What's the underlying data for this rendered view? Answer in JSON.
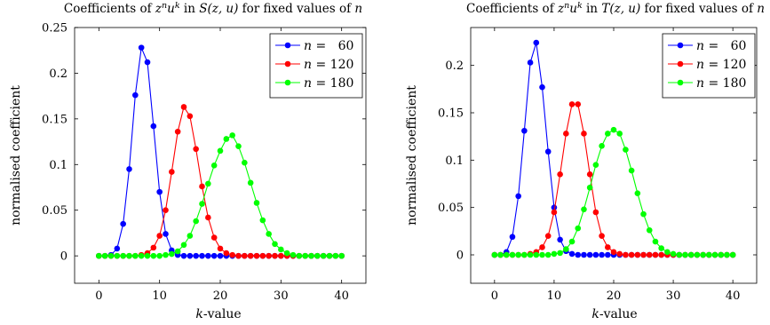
{
  "chart_data": [
    {
      "type": "line",
      "title_parts": [
        "Coefficients of ",
        "z",
        "n",
        "u",
        "k",
        " in ",
        "S",
        "(z, u)",
        " for fixed values of ",
        "n"
      ],
      "xlabel_parts": [
        "k",
        "-value"
      ],
      "ylabel": "normalised coefficient",
      "xlim": [
        -4,
        44
      ],
      "ylim": [
        -0.03,
        0.25
      ],
      "xticks": [
        0,
        10,
        20,
        30,
        40
      ],
      "yticks": [
        0,
        0.05,
        0.1,
        0.15,
        0.2,
        0.25
      ],
      "ytick_labels": [
        "0",
        "0.05",
        "0.1",
        "0.15",
        "0.2",
        "0.25"
      ],
      "legend_position": "top-right",
      "series": [
        {
          "name_parts": [
            "n",
            " =   60"
          ],
          "color": "#0000ff",
          "x": [
            0,
            1,
            2,
            3,
            4,
            5,
            6,
            7,
            8,
            9,
            10,
            11,
            12,
            13,
            14,
            15,
            16,
            17,
            18,
            19,
            20,
            21,
            22,
            23,
            24,
            25,
            26,
            27,
            28,
            29,
            30,
            31,
            32,
            33,
            34,
            35,
            36,
            37,
            38,
            39,
            40
          ],
          "y": [
            0,
            0,
            0.001,
            0.008,
            0.035,
            0.095,
            0.176,
            0.228,
            0.212,
            0.142,
            0.07,
            0.024,
            0.006,
            0.001,
            0,
            0,
            0,
            0,
            0,
            0,
            0,
            0,
            0,
            0,
            0,
            0,
            0,
            0,
            0,
            0,
            0,
            0,
            0,
            0,
            0,
            0,
            0,
            0,
            0,
            0,
            0
          ]
        },
        {
          "name_parts": [
            "n",
            " = 120"
          ],
          "color": "#ff0000",
          "x": [
            0,
            1,
            2,
            3,
            4,
            5,
            6,
            7,
            8,
            9,
            10,
            11,
            12,
            13,
            14,
            15,
            16,
            17,
            18,
            19,
            20,
            21,
            22,
            23,
            24,
            25,
            26,
            27,
            28,
            29,
            30,
            31,
            32,
            33,
            34,
            35,
            36,
            37,
            38,
            39,
            40
          ],
          "y": [
            0,
            0,
            0,
            0,
            0,
            0,
            0,
            0.001,
            0.003,
            0.009,
            0.022,
            0.05,
            0.092,
            0.136,
            0.163,
            0.153,
            0.117,
            0.076,
            0.042,
            0.02,
            0.008,
            0.003,
            0.001,
            0,
            0,
            0,
            0,
            0,
            0,
            0,
            0,
            0,
            0,
            0,
            0,
            0,
            0,
            0,
            0,
            0,
            0
          ]
        },
        {
          "name_parts": [
            "n",
            " = 180"
          ],
          "color": "#00ff00",
          "x": [
            0,
            1,
            2,
            3,
            4,
            5,
            6,
            7,
            8,
            9,
            10,
            11,
            12,
            13,
            14,
            15,
            16,
            17,
            18,
            19,
            20,
            21,
            22,
            23,
            24,
            25,
            26,
            27,
            28,
            29,
            30,
            31,
            32,
            33,
            34,
            35,
            36,
            37,
            38,
            39,
            40
          ],
          "y": [
            0,
            0,
            0,
            0,
            0,
            0,
            0,
            0,
            0,
            0,
            0,
            0.001,
            0.002,
            0.005,
            0.012,
            0.022,
            0.038,
            0.057,
            0.079,
            0.099,
            0.115,
            0.128,
            0.132,
            0.12,
            0.102,
            0.08,
            0.058,
            0.039,
            0.024,
            0.013,
            0.007,
            0.003,
            0.001,
            0,
            0,
            0,
            0,
            0,
            0,
            0,
            0
          ]
        }
      ]
    },
    {
      "type": "line",
      "title_parts": [
        "Coefficients of ",
        "z",
        "n",
        "u",
        "k",
        " in ",
        "T",
        "(z, u)",
        " for fixed values of ",
        "n"
      ],
      "xlabel_parts": [
        "k",
        "-value"
      ],
      "ylabel": "normalised coefficient",
      "xlim": [
        -4,
        44
      ],
      "ylim": [
        -0.03,
        0.24
      ],
      "xticks": [
        0,
        10,
        20,
        30,
        40
      ],
      "yticks": [
        0,
        0.05,
        0.1,
        0.15,
        0.2
      ],
      "ytick_labels": [
        "0",
        "0.05",
        "0.1",
        "0.15",
        "0.2"
      ],
      "legend_position": "top-right",
      "series": [
        {
          "name_parts": [
            "n",
            " =   60"
          ],
          "color": "#0000ff",
          "x": [
            0,
            1,
            2,
            3,
            4,
            5,
            6,
            7,
            8,
            9,
            10,
            11,
            12,
            13,
            14,
            15,
            16,
            17,
            18,
            19,
            20,
            21,
            22,
            23,
            24,
            25,
            26,
            27,
            28,
            29,
            30,
            31,
            32,
            33,
            34,
            35,
            36,
            37,
            38,
            39,
            40
          ],
          "y": [
            0,
            0,
            0.003,
            0.019,
            0.062,
            0.131,
            0.203,
            0.224,
            0.177,
            0.109,
            0.05,
            0.016,
            0.004,
            0.001,
            0,
            0,
            0,
            0,
            0,
            0,
            0,
            0,
            0,
            0,
            0,
            0,
            0,
            0,
            0,
            0,
            0,
            0,
            0,
            0,
            0,
            0,
            0,
            0,
            0,
            0,
            0
          ]
        },
        {
          "name_parts": [
            "n",
            " = 120"
          ],
          "color": "#ff0000",
          "x": [
            0,
            1,
            2,
            3,
            4,
            5,
            6,
            7,
            8,
            9,
            10,
            11,
            12,
            13,
            14,
            15,
            16,
            17,
            18,
            19,
            20,
            21,
            22,
            23,
            24,
            25,
            26,
            27,
            28,
            29,
            30,
            31,
            32,
            33,
            34,
            35,
            36,
            37,
            38,
            39,
            40
          ],
          "y": [
            0,
            0,
            0,
            0,
            0,
            0,
            0.001,
            0.003,
            0.008,
            0.02,
            0.045,
            0.085,
            0.128,
            0.159,
            0.159,
            0.128,
            0.085,
            0.045,
            0.02,
            0.008,
            0.003,
            0.001,
            0,
            0,
            0,
            0,
            0,
            0,
            0,
            0,
            0,
            0,
            0,
            0,
            0,
            0,
            0,
            0,
            0,
            0,
            0
          ]
        },
        {
          "name_parts": [
            "n",
            " = 180"
          ],
          "color": "#00ff00",
          "x": [
            0,
            1,
            2,
            3,
            4,
            5,
            6,
            7,
            8,
            9,
            10,
            11,
            12,
            13,
            14,
            15,
            16,
            17,
            18,
            19,
            20,
            21,
            22,
            23,
            24,
            25,
            26,
            27,
            28,
            29,
            30,
            31,
            32,
            33,
            34,
            35,
            36,
            37,
            38,
            39,
            40
          ],
          "y": [
            0,
            0,
            0,
            0,
            0,
            0,
            0,
            0,
            0,
            0,
            0.001,
            0.002,
            0.006,
            0.014,
            0.028,
            0.048,
            0.071,
            0.095,
            0.115,
            0.128,
            0.132,
            0.128,
            0.111,
            0.089,
            0.065,
            0.043,
            0.026,
            0.014,
            0.007,
            0.003,
            0.001,
            0,
            0,
            0,
            0,
            0,
            0,
            0,
            0,
            0,
            0
          ]
        }
      ]
    }
  ]
}
